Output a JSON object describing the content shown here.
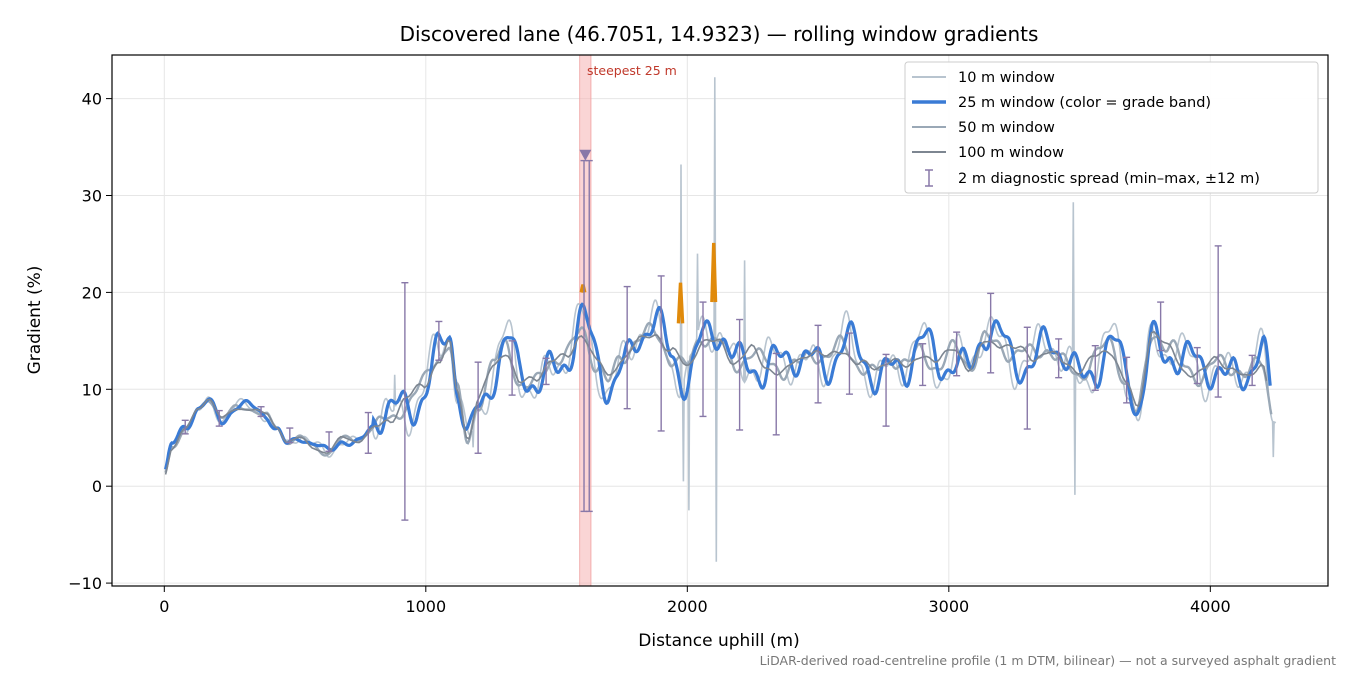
{
  "chart_data": {
    "type": "line",
    "title": "Discovered lane (46.7051, 14.9323) — rolling window gradients",
    "xlabel": "Distance uphill (m)",
    "ylabel": "Gradient (%)",
    "xlim": [
      -200,
      4450
    ],
    "ylim": [
      -10.3,
      44.5
    ],
    "xticks": [
      0,
      1000,
      2000,
      3000,
      4000
    ],
    "yticks": [
      -10,
      0,
      10,
      20,
      30,
      40
    ],
    "grid": true,
    "legend_position": "top-right",
    "footnote": "LiDAR-derived road-centreline profile (1 m DTM, bilinear) — not a surveyed asphalt gradient",
    "annotation": {
      "text": "steepest 25 m",
      "x_start": 1600,
      "x_end": 1620,
      "marker_x": 1610,
      "marker_y": 34.2
    },
    "colors": {
      "w10": "#b8c4cf",
      "w25": "#3a7bd5",
      "w25_steep": "#e08a0b",
      "w50": "#9aa8b6",
      "w100": "#7d8691",
      "spread": "#8878a8",
      "highlight": "#f6b3b3"
    },
    "profile_knots": [
      [
        0,
        1
      ],
      [
        30,
        4
      ],
      [
        80,
        6
      ],
      [
        130,
        8
      ],
      [
        170,
        9
      ],
      [
        220,
        7
      ],
      [
        280,
        8
      ],
      [
        340,
        8
      ],
      [
        390,
        7.5
      ],
      [
        430,
        6
      ],
      [
        470,
        4.5
      ],
      [
        520,
        5
      ],
      [
        570,
        4
      ],
      [
        620,
        3.5
      ],
      [
        680,
        5
      ],
      [
        740,
        4.5
      ],
      [
        800,
        6
      ],
      [
        860,
        7
      ],
      [
        920,
        9
      ],
      [
        990,
        10
      ],
      [
        1050,
        13
      ],
      [
        1090,
        15
      ],
      [
        1120,
        10
      ],
      [
        1160,
        5
      ],
      [
        1200,
        9
      ],
      [
        1260,
        12
      ],
      [
        1310,
        14
      ],
      [
        1360,
        11
      ],
      [
        1420,
        11
      ],
      [
        1480,
        13
      ],
      [
        1540,
        13
      ],
      [
        1600,
        16
      ],
      [
        1660,
        13
      ],
      [
        1700,
        11
      ],
      [
        1750,
        13
      ],
      [
        1820,
        15
      ],
      [
        1880,
        16
      ],
      [
        1940,
        14
      ],
      [
        2000,
        12
      ],
      [
        2060,
        15
      ],
      [
        2120,
        15
      ],
      [
        2180,
        13
      ],
      [
        2240,
        14
      ],
      [
        2300,
        12
      ],
      [
        2360,
        12
      ],
      [
        2420,
        13
      ],
      [
        2480,
        14
      ],
      [
        2540,
        13
      ],
      [
        2600,
        14
      ],
      [
        2660,
        13
      ],
      [
        2720,
        12
      ],
      [
        2780,
        13
      ],
      [
        2840,
        12
      ],
      [
        2900,
        14
      ],
      [
        2960,
        13
      ],
      [
        3020,
        14
      ],
      [
        3080,
        12
      ],
      [
        3140,
        15
      ],
      [
        3200,
        15
      ],
      [
        3260,
        14
      ],
      [
        3320,
        13
      ],
      [
        3380,
        14
      ],
      [
        3440,
        13
      ],
      [
        3500,
        12
      ],
      [
        3560,
        13
      ],
      [
        3620,
        14
      ],
      [
        3680,
        11
      ],
      [
        3720,
        8
      ],
      [
        3780,
        16
      ],
      [
        3840,
        14
      ],
      [
        3900,
        12
      ],
      [
        3960,
        12
      ],
      [
        4020,
        13
      ],
      [
        4080,
        12
      ],
      [
        4140,
        11
      ],
      [
        4200,
        13
      ],
      [
        4240,
        8
      ]
    ],
    "steep_segments_25m": [
      {
        "x_start": 1594,
        "x_end": 1608,
        "peak": 20.8
      },
      {
        "x_start": 1966,
        "x_end": 1982,
        "peak": 21.0
      },
      {
        "x_start": 2094,
        "x_end": 2108,
        "peak": 25.1
      }
    ],
    "spikes_10m": [
      {
        "x": 1975,
        "y": 33.2
      },
      {
        "x": 2005,
        "y": -2.5
      },
      {
        "x": 2105,
        "y": 42.2
      },
      {
        "x": 2112,
        "y": -7.8
      },
      {
        "x": 2040,
        "y": 24.0
      },
      {
        "x": 1985,
        "y": 0.5
      },
      {
        "x": 3475,
        "y": 29.3
      },
      {
        "x": 3482,
        "y": -0.9
      },
      {
        "x": 2220,
        "y": 23.3
      },
      {
        "x": 4240,
        "y": 3.0
      },
      {
        "x": 880,
        "y": 11.5
      },
      {
        "x": 1180,
        "y": 4.0
      }
    ],
    "spread_bars": [
      {
        "x": 80,
        "min": 5.4,
        "max": 6.8
      },
      {
        "x": 210,
        "min": 6.2,
        "max": 7.8
      },
      {
        "x": 370,
        "min": 7.2,
        "max": 8.2
      },
      {
        "x": 480,
        "min": 4.5,
        "max": 6.0
      },
      {
        "x": 630,
        "min": 3.6,
        "max": 5.6
      },
      {
        "x": 780,
        "min": 3.4,
        "max": 7.6
      },
      {
        "x": 920,
        "min": -3.5,
        "max": 21.0
      },
      {
        "x": 1050,
        "min": 13.0,
        "max": 17.0
      },
      {
        "x": 1200,
        "min": 3.4,
        "max": 12.8
      },
      {
        "x": 1330,
        "min": 9.4,
        "max": 15.0
      },
      {
        "x": 1460,
        "min": 10.5,
        "max": 13.2
      },
      {
        "x": 1605,
        "min": -2.6,
        "max": 33.6
      },
      {
        "x": 1625,
        "min": -2.6,
        "max": 33.6
      },
      {
        "x": 1770,
        "min": 8.0,
        "max": 20.6
      },
      {
        "x": 1900,
        "min": 5.7,
        "max": 21.7
      },
      {
        "x": 2060,
        "min": 7.2,
        "max": 19.0
      },
      {
        "x": 2200,
        "min": 5.8,
        "max": 17.2
      },
      {
        "x": 2340,
        "min": 5.3,
        "max": 13.7
      },
      {
        "x": 2500,
        "min": 8.6,
        "max": 16.6
      },
      {
        "x": 2620,
        "min": 9.5,
        "max": 15.8
      },
      {
        "x": 2760,
        "min": 6.2,
        "max": 13.6
      },
      {
        "x": 2900,
        "min": 10.4,
        "max": 14.7
      },
      {
        "x": 3030,
        "min": 11.4,
        "max": 15.9
      },
      {
        "x": 3160,
        "min": 11.7,
        "max": 19.9
      },
      {
        "x": 3300,
        "min": 5.9,
        "max": 16.4
      },
      {
        "x": 3420,
        "min": 11.2,
        "max": 15.2
      },
      {
        "x": 3560,
        "min": 9.9,
        "max": 14.5
      },
      {
        "x": 3680,
        "min": 8.6,
        "max": 13.3
      },
      {
        "x": 3810,
        "min": 14.0,
        "max": 19.0
      },
      {
        "x": 3950,
        "min": 10.6,
        "max": 14.3
      },
      {
        "x": 4030,
        "min": 9.2,
        "max": 24.8
      },
      {
        "x": 4160,
        "min": 10.4,
        "max": 13.5
      }
    ],
    "series": [
      {
        "name": "10 m window"
      },
      {
        "name": "25 m window (color = grade band)"
      },
      {
        "name": "50 m window"
      },
      {
        "name": "100 m window"
      },
      {
        "name": "2 m diagnostic spread (min–max, ±12 m)"
      }
    ]
  }
}
